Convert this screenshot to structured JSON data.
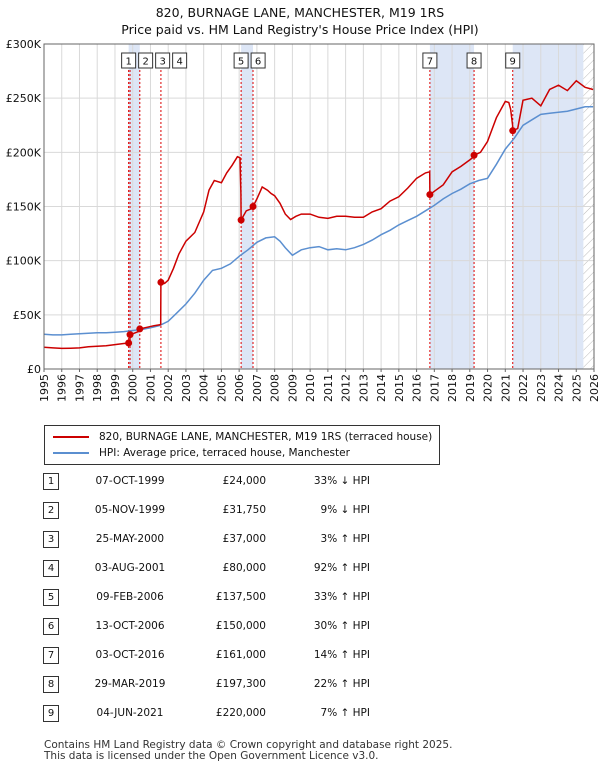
{
  "title_line1": "820, BURNAGE LANE, MANCHESTER, M19 1RS",
  "title_line2": "Price paid vs. HM Land Registry's House Price Index (HPI)",
  "colors": {
    "property": "#cc0000",
    "hpi": "#5b8fd0",
    "shade": "#dde6f6",
    "vline": "#dd0000",
    "grid": "#d9d9d9",
    "hatch": "#bbbbbb"
  },
  "legend": {
    "property": "820, BURNAGE LANE, MANCHESTER, M19 1RS (terraced house)",
    "hpi": "HPI: Average price, terraced house, Manchester"
  },
  "chart_data": {
    "type": "line",
    "title": "Price paid vs. HM Land Registry's House Price Index (HPI)",
    "xlim": [
      1995,
      2026
    ],
    "ylim": [
      0,
      300000
    ],
    "y_ticks": [
      0,
      50000,
      100000,
      150000,
      200000,
      250000,
      300000
    ],
    "y_tick_labels": [
      "£0",
      "£50K",
      "£100K",
      "£150K",
      "£200K",
      "£250K",
      "£300K"
    ],
    "x_ticks": [
      "1995",
      "1996",
      "1997",
      "1998",
      "1999",
      "2000",
      "2001",
      "2002",
      "2003",
      "2004",
      "2005",
      "2006",
      "2007",
      "2008",
      "2009",
      "2010",
      "2011",
      "2012",
      "2013",
      "2014",
      "2015",
      "2016",
      "2017",
      "2018",
      "2019",
      "2020",
      "2021",
      "2022",
      "2023",
      "2024",
      "2025",
      "2026"
    ],
    "shaded_periods": [
      [
        1999.77,
        2000.4
      ],
      [
        2006.11,
        2006.78
      ],
      [
        2016.75,
        2019.24
      ],
      [
        2021.42,
        2025.4
      ]
    ],
    "hatched_after": 2025.4,
    "series": [
      {
        "name": "820, BURNAGE LANE, MANCHESTER, M19 1RS (terraced house)",
        "x": [
          1995,
          1995.5,
          1996,
          1996.5,
          1997,
          1997.5,
          1998,
          1998.5,
          1999,
          1999.5,
          1999.76,
          1999.77,
          1999.84,
          1999.85,
          2000.0,
          2000.39,
          2000.4,
          2000.8,
          2001.2,
          2001.58,
          2001.59,
          2001.8,
          2002.0,
          2002.3,
          2002.6,
          2003.0,
          2003.5,
          2004.0,
          2004.3,
          2004.6,
          2005.0,
          2005.3,
          2005.6,
          2005.9,
          2006.05,
          2006.1,
          2006.11,
          2006.4,
          2006.7,
          2006.78,
          2007.0,
          2007.3,
          2007.6,
          2007.8,
          2008.0,
          2008.3,
          2008.6,
          2008.9,
          2009.2,
          2009.5,
          2010.0,
          2010.5,
          2011.0,
          2011.5,
          2012.0,
          2012.5,
          2013.0,
          2013.5,
          2014.0,
          2014.5,
          2015.0,
          2015.5,
          2016.0,
          2016.5,
          2016.74,
          2016.75,
          2017.0,
          2017.5,
          2018.0,
          2018.5,
          2019.0,
          2019.23,
          2019.24,
          2019.6,
          2020.0,
          2020.5,
          2021.0,
          2021.2,
          2021.3,
          2021.41,
          2021.42,
          2021.7,
          2022.0,
          2022.5,
          2023.0,
          2023.5,
          2024.0,
          2024.5,
          2025.0,
          2025.5,
          2025.95
        ],
        "y": [
          20000,
          19500,
          19000,
          19200,
          19500,
          20500,
          21000,
          21500,
          22500,
          23500,
          24000,
          24000,
          24500,
          31750,
          32500,
          35000,
          37000,
          38500,
          40000,
          41000,
          80000,
          79000,
          82000,
          93000,
          106000,
          118000,
          126000,
          145000,
          165000,
          174000,
          172000,
          181000,
          188000,
          196000,
          195000,
          162000,
          137500,
          146000,
          148000,
          150000,
          157000,
          168000,
          165000,
          162000,
          160000,
          153000,
          143000,
          138000,
          141000,
          143000,
          143000,
          140000,
          139000,
          141000,
          141000,
          140000,
          140000,
          145000,
          148000,
          155000,
          159000,
          167000,
          176000,
          181000,
          182000,
          161000,
          164000,
          170000,
          182000,
          187000,
          193000,
          196000,
          197300,
          200000,
          210000,
          232000,
          247000,
          246000,
          240000,
          225000,
          220000,
          222000,
          248000,
          250000,
          243000,
          258000,
          262000,
          257000,
          266000,
          260000,
          258000
        ]
      },
      {
        "name": "HPI: Average price, terraced house, Manchester",
        "x": [
          1995,
          1995.5,
          1996,
          1996.5,
          1997,
          1997.5,
          1998,
          1998.5,
          1999,
          1999.5,
          2000,
          2000.5,
          2001,
          2001.5,
          2002,
          2002.5,
          2003,
          2003.5,
          2004,
          2004.5,
          2005,
          2005.5,
          2006,
          2006.5,
          2007,
          2007.5,
          2008,
          2008.3,
          2008.6,
          2009,
          2009.5,
          2010,
          2010.5,
          2011,
          2011.5,
          2012,
          2012.5,
          2013,
          2013.5,
          2014,
          2014.5,
          2015,
          2015.5,
          2016,
          2016.5,
          2017,
          2017.5,
          2018,
          2018.5,
          2019,
          2019.5,
          2020,
          2020.5,
          2021,
          2021.5,
          2022,
          2022.5,
          2023,
          2023.5,
          2024,
          2024.5,
          2025,
          2025.5,
          2025.95
        ],
        "y": [
          32000,
          31500,
          31500,
          32000,
          32500,
          33000,
          33500,
          33500,
          34000,
          34500,
          35500,
          36500,
          38000,
          40000,
          44000,
          52000,
          60000,
          70000,
          82000,
          91000,
          93000,
          97000,
          104000,
          110000,
          117000,
          121000,
          122000,
          118000,
          112000,
          105000,
          110000,
          112000,
          113000,
          110000,
          111000,
          110000,
          112000,
          115000,
          119000,
          124000,
          128000,
          133000,
          137000,
          141000,
          146000,
          151000,
          157000,
          162000,
          166000,
          171000,
          174000,
          176000,
          189000,
          203000,
          213000,
          225000,
          230000,
          235000,
          236000,
          237000,
          238000,
          240000,
          242000,
          242000
        ]
      }
    ],
    "sales": [
      {
        "num": "1",
        "date": "07-OCT-1999",
        "price": "£24,000",
        "hpi": "33% ↓ HPI",
        "x": 1999.77,
        "y": 24000
      },
      {
        "num": "2",
        "date": "05-NOV-1999",
        "price": "£31,750",
        "hpi": "9% ↓ HPI",
        "x": 1999.85,
        "y": 31750
      },
      {
        "num": "3",
        "date": "25-MAY-2000",
        "price": "£37,000",
        "hpi": "3% ↑ HPI",
        "x": 2000.4,
        "y": 37000
      },
      {
        "num": "4",
        "date": "03-AUG-2001",
        "price": "£80,000",
        "hpi": "92% ↑ HPI",
        "x": 2001.59,
        "y": 80000
      },
      {
        "num": "5",
        "date": "09-FEB-2006",
        "price": "£137,500",
        "hpi": "33% ↑ HPI",
        "x": 2006.11,
        "y": 137500
      },
      {
        "num": "6",
        "date": "13-OCT-2006",
        "price": "£150,000",
        "hpi": "30% ↑ HPI",
        "x": 2006.78,
        "y": 150000
      },
      {
        "num": "7",
        "date": "03-OCT-2016",
        "price": "£161,000",
        "hpi": "14% ↑ HPI",
        "x": 2016.75,
        "y": 161000
      },
      {
        "num": "8",
        "date": "29-MAR-2019",
        "price": "£197,300",
        "hpi": "22% ↑ HPI",
        "x": 2019.24,
        "y": 197300
      },
      {
        "num": "9",
        "date": "04-JUN-2021",
        "price": "£220,000",
        "hpi": "7% ↑ HPI",
        "x": 2021.42,
        "y": 220000
      }
    ],
    "marker_labels": [
      {
        "num": "1",
        "x": 1999.77
      },
      {
        "num": "2",
        "x": 1999.85
      },
      {
        "num": "3",
        "x": 2000.4
      },
      {
        "num": "4",
        "x": 2001.59
      },
      {
        "num": "5",
        "x": 2006.11
      },
      {
        "num": "6",
        "x": 2006.78
      },
      {
        "num": "7",
        "x": 2016.75
      },
      {
        "num": "8",
        "x": 2019.24
      },
      {
        "num": "9",
        "x": 2021.42
      }
    ]
  },
  "footer_line1": "Contains HM Land Registry data © Crown copyright and database right 2025.",
  "footer_line2": "This data is licensed under the Open Government Licence v3.0."
}
